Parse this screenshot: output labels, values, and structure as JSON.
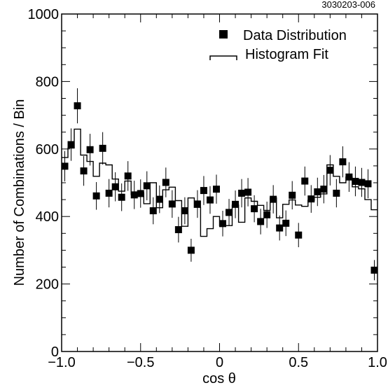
{
  "chart_data": {
    "type": "scatter",
    "figure_id": "3030203-006",
    "xlabel": "cos θ",
    "ylabel": "Number of Combinations / Bin",
    "xlim": [
      -1.0,
      1.0
    ],
    "ylim": [
      0,
      1000
    ],
    "x_ticks": [
      {
        "value": -1.0,
        "label": "−1.0"
      },
      {
        "value": -0.5,
        "label": "−0.5"
      },
      {
        "value": 0,
        "label": "0"
      },
      {
        "value": 0.5,
        "label": "0.5"
      },
      {
        "value": 1.0,
        "label": "1.0"
      }
    ],
    "y_ticks": [
      {
        "value": 0,
        "label": "0"
      },
      {
        "value": 200,
        "label": "200"
      },
      {
        "value": 400,
        "label": "400"
      },
      {
        "value": 600,
        "label": "600"
      },
      {
        "value": 800,
        "label": "800"
      },
      {
        "value": 1000,
        "label": "1000"
      }
    ],
    "legend_position": "top-right",
    "series": [
      {
        "name": "Data Distribution",
        "kind": "points-with-errors",
        "color": "#000000",
        "x": [
          -0.98,
          -0.94,
          -0.9,
          -0.86,
          -0.82,
          -0.78,
          -0.74,
          -0.7,
          -0.66,
          -0.62,
          -0.58,
          -0.54,
          -0.5,
          -0.46,
          -0.42,
          -0.38,
          -0.34,
          -0.3,
          -0.26,
          -0.22,
          -0.18,
          -0.14,
          -0.1,
          -0.06,
          -0.02,
          0.02,
          0.06,
          0.1,
          0.14,
          0.18,
          0.22,
          0.26,
          0.3,
          0.34,
          0.38,
          0.42,
          0.46,
          0.5,
          0.54,
          0.58,
          0.62,
          0.66,
          0.7,
          0.74,
          0.78,
          0.82,
          0.86,
          0.9,
          0.94,
          0.98
        ],
        "y": [
          549,
          613,
          728,
          535,
          598,
          461,
          602,
          469,
          488,
          457,
          520,
          464,
          468,
          491,
          417,
          451,
          501,
          437,
          361,
          417,
          300,
          437,
          477,
          449,
          481,
          379,
          412,
          436,
          469,
          472,
          423,
          385,
          405,
          451,
          366,
          380,
          463,
          345,
          505,
          452,
          473,
          481,
          537,
          469,
          562,
          517,
          504,
          501,
          497,
          241
        ],
        "error": [
          45,
          48,
          52,
          44,
          47,
          41,
          48,
          42,
          43,
          41,
          44,
          42,
          42,
          43,
          40,
          41,
          44,
          41,
          38,
          40,
          34,
          41,
          43,
          41,
          43,
          38,
          40,
          41,
          42,
          42,
          40,
          38,
          39,
          42,
          37,
          38,
          42,
          36,
          43,
          41,
          42,
          42,
          45,
          42,
          46,
          44,
          44,
          43,
          43,
          30
        ]
      },
      {
        "name": "Histogram Fit",
        "kind": "step",
        "color": "#000000",
        "edges": [
          -1.0,
          -0.96,
          -0.92,
          -0.88,
          -0.84,
          -0.8,
          -0.76,
          -0.72,
          -0.68,
          -0.64,
          -0.6,
          -0.56,
          -0.52,
          -0.48,
          -0.44,
          -0.4,
          -0.36,
          -0.32,
          -0.28,
          -0.24,
          -0.2,
          -0.16,
          -0.12,
          -0.08,
          -0.04,
          0.0,
          0.04,
          0.08,
          0.12,
          0.16,
          0.2,
          0.24,
          0.28,
          0.32,
          0.36,
          0.4,
          0.44,
          0.48,
          0.52,
          0.56,
          0.6,
          0.64,
          0.68,
          0.72,
          0.76,
          0.8,
          0.84,
          0.88,
          0.92,
          0.96,
          1.0
        ],
        "values": [
          575,
          603,
          659,
          582,
          563,
          519,
          558,
          553,
          511,
          475,
          505,
          465,
          470,
          438,
          500,
          426,
          479,
          487,
          447,
          371,
          455,
          427,
          341,
          364,
          400,
          373,
          373,
          434,
          383,
          455,
          445,
          433,
          418,
          455,
          396,
          436,
          449,
          434,
          430,
          448,
          457,
          467,
          553,
          519,
          500,
          517,
          488,
          482,
          450,
          420
        ]
      }
    ]
  }
}
